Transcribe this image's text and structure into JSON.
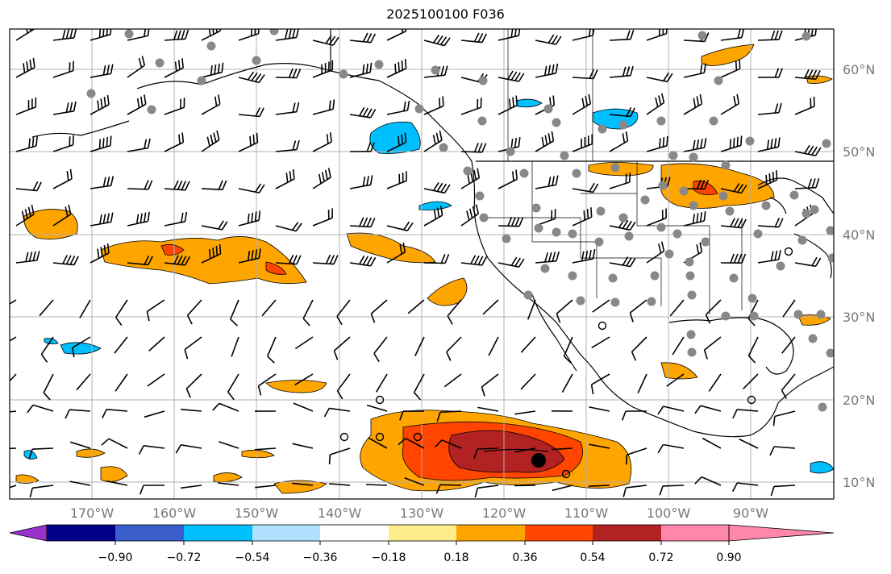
{
  "title": "2025100100 F036",
  "map": {
    "lat_labels": [
      "60°N",
      "50°N",
      "40°N",
      "30°N",
      "20°N",
      "10°N"
    ],
    "lon_labels": [
      "170°W",
      "160°W",
      "150°W",
      "140°W",
      "130°W",
      "120°W",
      "110°W",
      "100°W",
      "90°W"
    ],
    "extent": {
      "lon_min": -180,
      "lon_max": -80,
      "lat_min": 8,
      "lat_max": 65
    }
  },
  "colorbar": {
    "colors": [
      "#9932cc",
      "#00008b",
      "#3a5fcd",
      "#00bfff",
      "#b0e2ff",
      "#ffffff",
      "#ffec8b",
      "#ffa500",
      "#ff4500",
      "#b22222",
      "#ff88aa"
    ],
    "tick_labels": [
      "−0.90",
      "−0.72",
      "−0.54",
      "−0.36",
      "−0.18",
      "0.18",
      "0.36",
      "0.54",
      "0.72",
      "0.90"
    ]
  },
  "colors": {
    "grid": "#b0b0b0",
    "station_marker": "#888888",
    "barb": "#000000",
    "coast": "#000000",
    "axis_label": "#777777"
  }
}
